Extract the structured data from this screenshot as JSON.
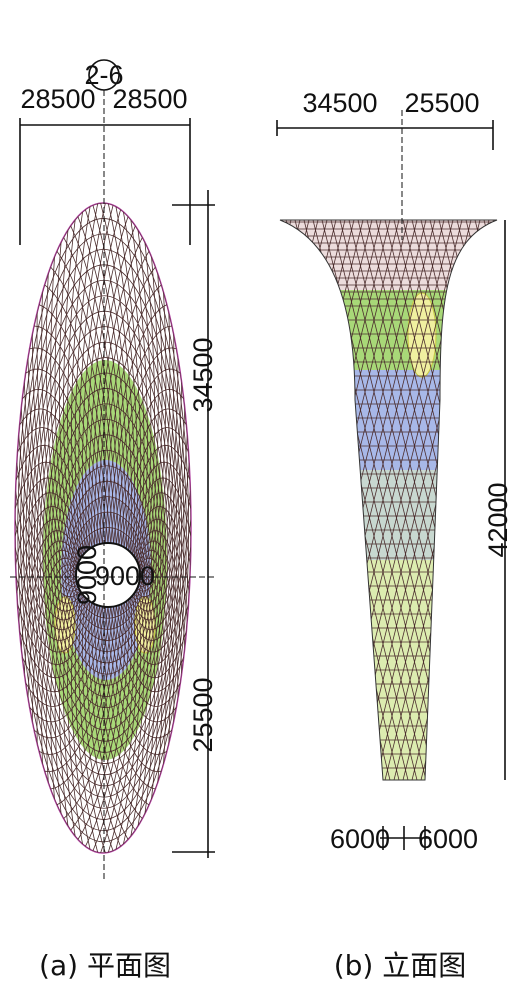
{
  "plan": {
    "dims_top": [
      "28500",
      "28500"
    ],
    "axis_label": "2-6",
    "dims_right": [
      "34500",
      "25500"
    ],
    "center_dims": [
      "9000",
      "9000"
    ],
    "caption": "(a) 平面图"
  },
  "elevation": {
    "dims_top": [
      "34500",
      "25500"
    ],
    "height": "42000",
    "dims_bottom": [
      "6000",
      "6000"
    ],
    "caption": "(b) 立面图"
  }
}
